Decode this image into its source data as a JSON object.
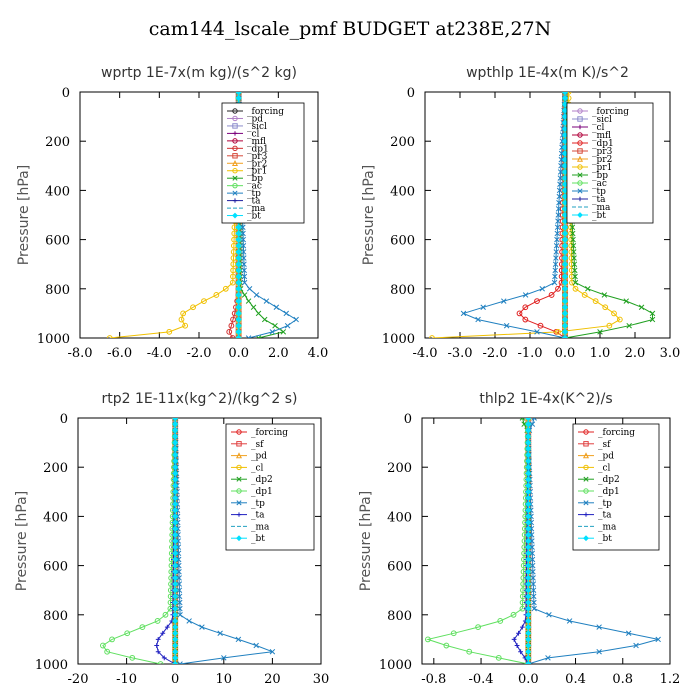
{
  "title": "cam144_lscale_pmf  BUDGET at238E,27N",
  "chart_data": [
    {
      "type": "line",
      "title": "wprtp  1E-7x(m kg)/(s^2 kg)",
      "ylabel": "Pressure [hPa]",
      "xlim": [
        -8,
        4
      ],
      "ylim": [
        1000,
        0
      ],
      "xticks": [
        "-8.0",
        "-6.0",
        "-4.0",
        "-2.0",
        "0.0",
        "2.0",
        "4.0"
      ],
      "yticks": [
        "0",
        "200",
        "400",
        "600",
        "800",
        "1000"
      ],
      "legend_position": "top-right",
      "series": [
        {
          "name": "_forcing",
          "color": "#222222",
          "marker": "o",
          "y": [
            0,
            1000
          ],
          "x": [
            0,
            0
          ]
        },
        {
          "name": "_pd",
          "color": "#b07fc7",
          "marker": "o",
          "y": [
            0,
            1000
          ],
          "x": [
            0,
            0
          ]
        },
        {
          "name": "_sicl",
          "color": "#8c8ccc",
          "marker": "s",
          "y": [
            0,
            1000
          ],
          "x": [
            0,
            0
          ]
        },
        {
          "name": "_cl",
          "color": "#7a007a",
          "marker": "+",
          "y": [
            0,
            1000
          ],
          "x": [
            0,
            0
          ]
        },
        {
          "name": "_mfl",
          "color": "#b0003a",
          "marker": "o",
          "y": [
            0,
            1000
          ],
          "x": [
            0,
            0
          ]
        },
        {
          "name": "_dp1",
          "color": "#d03030",
          "marker": "o",
          "y": [
            0,
            820,
            860,
            900,
            930,
            960,
            980,
            1000
          ],
          "x": [
            0,
            0,
            -0.1,
            -0.2,
            -0.3,
            -0.4,
            -0.5,
            -0.3
          ]
        },
        {
          "name": "_pr3",
          "color": "#d64a3a",
          "marker": "s",
          "y": [
            0,
            1000
          ],
          "x": [
            0,
            0
          ]
        },
        {
          "name": "_pr2",
          "color": "#f0a020",
          "marker": "^",
          "y": [
            0,
            1000
          ],
          "x": [
            0,
            0
          ]
        },
        {
          "name": "_pr1",
          "color": "#f0c000",
          "marker": "o",
          "y": [
            0,
            780,
            820,
            860,
            900,
            930,
            960,
            980,
            1000
          ],
          "x": [
            0,
            -0.3,
            -1.0,
            -2.0,
            -2.8,
            -2.9,
            -2.6,
            -3.8,
            -6.5
          ]
        },
        {
          "name": "_bp",
          "color": "#20a020",
          "marker": "x",
          "y": [
            0,
            800,
            850,
            900,
            940,
            970,
            1000
          ],
          "x": [
            0,
            0.1,
            0.5,
            1.0,
            1.5,
            2.5,
            1.0
          ]
        },
        {
          "name": "_ac",
          "color": "#60e060",
          "marker": "o",
          "y": [
            0,
            1000
          ],
          "x": [
            0,
            0
          ]
        },
        {
          "name": "_tp",
          "color": "#2080c0",
          "marker": "x",
          "y": [
            0,
            780,
            820,
            860,
            900,
            930,
            960,
            990,
            1000
          ],
          "x": [
            0,
            0.3,
            0.8,
            1.6,
            2.4,
            3.0,
            2.2,
            1.2,
            0.5
          ]
        },
        {
          "name": "_ta",
          "color": "#2020a0",
          "marker": "+",
          "y": [
            0,
            1000
          ],
          "x": [
            0,
            0
          ]
        },
        {
          "name": "_ma",
          "color": "#20a0c0",
          "marker": "-",
          "y": [
            0,
            1000
          ],
          "x": [
            0,
            0
          ]
        },
        {
          "name": "_bt",
          "color": "#00e0ff",
          "marker": "D",
          "y": [
            0,
            1000
          ],
          "x": [
            0,
            0
          ]
        }
      ]
    },
    {
      "type": "line",
      "title": "wpthlp  1E-4x(m K)/s^2",
      "ylabel": "Pressure [hPa]",
      "xlim": [
        -4,
        3
      ],
      "ylim": [
        1000,
        0
      ],
      "xticks": [
        "-4.0",
        "-3.0",
        "-2.0",
        "-1.0",
        "0.0",
        "1.0",
        "2.0",
        "3.0"
      ],
      "yticks": [
        "0",
        "200",
        "400",
        "600",
        "800",
        "1000"
      ],
      "legend_position": "top-right",
      "series": [
        {
          "name": "_forcing",
          "color": "#b07fc7",
          "marker": "o",
          "y": [
            0,
            1000
          ],
          "x": [
            0,
            0
          ]
        },
        {
          "name": "_sicl",
          "color": "#8c8ccc",
          "marker": "s",
          "y": [
            0,
            1000
          ],
          "x": [
            0,
            0
          ]
        },
        {
          "name": "_cl",
          "color": "#7a007a",
          "marker": "+",
          "y": [
            0,
            1000
          ],
          "x": [
            0,
            0
          ]
        },
        {
          "name": "_mfl",
          "color": "#b0003a",
          "marker": "o",
          "y": [
            0,
            1000
          ],
          "x": [
            0,
            0
          ]
        },
        {
          "name": "_dp1",
          "color": "#e02020",
          "marker": "o",
          "y": [
            0,
            780,
            820,
            850,
            880,
            900,
            930,
            960,
            990,
            1000
          ],
          "x": [
            0,
            -0.1,
            -0.3,
            -0.8,
            -1.2,
            -1.3,
            -1.1,
            -0.5,
            0,
            0
          ]
        },
        {
          "name": "_pr3",
          "color": "#d64a3a",
          "marker": "s",
          "y": [
            0,
            1000
          ],
          "x": [
            0,
            0
          ]
        },
        {
          "name": "_pr2",
          "color": "#f0a020",
          "marker": "^",
          "y": [
            0,
            1000
          ],
          "x": [
            0,
            0
          ]
        },
        {
          "name": "_pr1",
          "color": "#f0c000",
          "marker": "o",
          "y": [
            0,
            790,
            820,
            860,
            900,
            930,
            960,
            990,
            1000
          ],
          "x": [
            0.1,
            0.2,
            0.5,
            1.0,
            1.4,
            1.6,
            1.1,
            -1.5,
            -3.8
          ]
        },
        {
          "name": "_bp",
          "color": "#20a020",
          "marker": "x",
          "y": [
            0,
            780,
            820,
            860,
            900,
            930,
            960,
            990,
            1000
          ],
          "x": [
            0,
            0.3,
            1.0,
            2.0,
            2.5,
            2.5,
            1.5,
            0.5,
            0
          ]
        },
        {
          "name": "_ac",
          "color": "#60e060",
          "marker": "o",
          "y": [
            0,
            1000
          ],
          "x": [
            0,
            0
          ]
        },
        {
          "name": "_tp",
          "color": "#2080c0",
          "marker": "x",
          "y": [
            0,
            780,
            820,
            860,
            900,
            930,
            960,
            990,
            1000
          ],
          "x": [
            0,
            -0.3,
            -1.0,
            -2.0,
            -2.9,
            -2.4,
            -1.3,
            -0.3,
            0
          ]
        },
        {
          "name": "_ta",
          "color": "#2020a0",
          "marker": "+",
          "y": [
            0,
            1000
          ],
          "x": [
            0,
            0
          ]
        },
        {
          "name": "_ma",
          "color": "#20a0c0",
          "marker": "-",
          "y": [
            0,
            1000
          ],
          "x": [
            0,
            0
          ]
        },
        {
          "name": "_bt",
          "color": "#00e0ff",
          "marker": "D",
          "y": [
            0,
            1000
          ],
          "x": [
            0,
            0
          ]
        }
      ]
    },
    {
      "type": "line",
      "title": "rtp2  1E-11x(kg^2)/(kg^2 s)",
      "ylabel": "Pressure [hPa]",
      "xlim": [
        -20,
        30
      ],
      "ylim": [
        1000,
        0
      ],
      "xticks": [
        "-20",
        "-10",
        "0",
        "10",
        "20",
        "30"
      ],
      "yticks": [
        "0",
        "200",
        "400",
        "600",
        "800",
        "1000"
      ],
      "legend_position": "top-right",
      "series": [
        {
          "name": "_forcing",
          "color": "#e02020",
          "marker": "o",
          "y": [
            0,
            1000
          ],
          "x": [
            0,
            0
          ]
        },
        {
          "name": "_sf",
          "color": "#e04040",
          "marker": "s",
          "y": [
            0,
            1000
          ],
          "x": [
            0,
            0
          ]
        },
        {
          "name": "_pd",
          "color": "#f0a020",
          "marker": "^",
          "y": [
            0,
            1000
          ],
          "x": [
            0,
            0
          ]
        },
        {
          "name": "_cl",
          "color": "#f0c000",
          "marker": "o",
          "y": [
            0,
            1000
          ],
          "x": [
            0,
            0
          ]
        },
        {
          "name": "_dp2",
          "color": "#20a020",
          "marker": "x",
          "y": [
            0,
            1000
          ],
          "x": [
            0,
            0
          ]
        },
        {
          "name": "_dp1",
          "color": "#60e060",
          "marker": "o",
          "y": [
            0,
            780,
            820,
            860,
            900,
            940,
            970,
            1000
          ],
          "x": [
            0,
            -1,
            -3,
            -8,
            -13,
            -16,
            -10,
            -3
          ]
        },
        {
          "name": "_tp",
          "color": "#2080c0",
          "marker": "x",
          "y": [
            0,
            800,
            840,
            880,
            920,
            950,
            980,
            1000
          ],
          "x": [
            0,
            1,
            4,
            10,
            16,
            20,
            8,
            1
          ]
        },
        {
          "name": "_ta",
          "color": "#2020c0",
          "marker": "+",
          "y": [
            0,
            820,
            860,
            900,
            940,
            980,
            1000
          ],
          "x": [
            0,
            -0.5,
            -2,
            -3.5,
            -4,
            -2,
            0
          ]
        },
        {
          "name": "_ma",
          "color": "#20a0c0",
          "marker": "-",
          "y": [
            0,
            1000
          ],
          "x": [
            0,
            0
          ]
        },
        {
          "name": "_bt",
          "color": "#00e0ff",
          "marker": "D",
          "y": [
            0,
            1000
          ],
          "x": [
            0,
            0
          ]
        }
      ]
    },
    {
      "type": "line",
      "title": "thlp2  1E-4x(K^2)/s",
      "ylabel": "Pressure [hPa]",
      "xlim": [
        -0.9,
        1.2
      ],
      "ylim": [
        1000,
        0
      ],
      "xticks": [
        "-0.8",
        "-0.4",
        "0.0",
        "0.4",
        "0.8",
        "1.2"
      ],
      "xtick_values": [
        -0.8,
        -0.4,
        0.0,
        0.4,
        0.8,
        1.2
      ],
      "yticks": [
        "0",
        "200",
        "400",
        "600",
        "800",
        "1000"
      ],
      "legend_position": "top-right",
      "series": [
        {
          "name": "_forcing",
          "color": "#e02020",
          "marker": "o",
          "y": [
            0,
            1000
          ],
          "x": [
            0,
            0
          ]
        },
        {
          "name": "_sf",
          "color": "#e04040",
          "marker": "s",
          "y": [
            0,
            1000
          ],
          "x": [
            0,
            0
          ]
        },
        {
          "name": "_pd",
          "color": "#f0a020",
          "marker": "^",
          "y": [
            0,
            1000
          ],
          "x": [
            0,
            0
          ]
        },
        {
          "name": "_cl",
          "color": "#f0c000",
          "marker": "o",
          "y": [
            0,
            1000
          ],
          "x": [
            0,
            0
          ]
        },
        {
          "name": "_dp2",
          "color": "#20a020",
          "marker": "x",
          "y": [
            0,
            20,
            60,
            1000
          ],
          "x": [
            -0.05,
            -0.04,
            0,
            0
          ]
        },
        {
          "name": "_dp1",
          "color": "#60e060",
          "marker": "o",
          "y": [
            0,
            780,
            820,
            860,
            900,
            940,
            970,
            1000
          ],
          "x": [
            0,
            -0.05,
            -0.2,
            -0.5,
            -0.85,
            -0.6,
            -0.3,
            0
          ]
        },
        {
          "name": "_tp",
          "color": "#2080c0",
          "marker": "x",
          "y": [
            0,
            20,
            60,
            780,
            820,
            860,
            900,
            940,
            970,
            1000
          ],
          "x": [
            0.05,
            0.04,
            0,
            0.05,
            0.3,
            0.7,
            1.1,
            0.8,
            0.2,
            0
          ]
        },
        {
          "name": "_ta",
          "color": "#2020c0",
          "marker": "+",
          "y": [
            0,
            820,
            860,
            900,
            940,
            980,
            1000
          ],
          "x": [
            0,
            -0.02,
            -0.06,
            -0.12,
            -0.08,
            -0.02,
            0
          ]
        },
        {
          "name": "_ma",
          "color": "#20a0c0",
          "marker": "-",
          "y": [
            0,
            1000
          ],
          "x": [
            0,
            0
          ]
        },
        {
          "name": "_bt",
          "color": "#00e0ff",
          "marker": "D",
          "y": [
            0,
            1000
          ],
          "x": [
            0,
            0
          ]
        }
      ]
    }
  ]
}
